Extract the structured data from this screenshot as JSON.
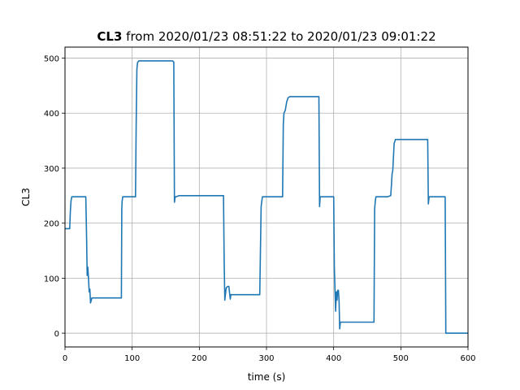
{
  "chart_data": {
    "type": "line",
    "title": {
      "bold": "CL3",
      "rest": " from 2020/01/23 08:51:22 to 2020/01/23 09:01:22"
    },
    "xlabel": "time (s)",
    "ylabel": "CL3",
    "xlim": [
      0,
      600
    ],
    "ylim": [
      -25,
      520
    ],
    "xticks": [
      0,
      100,
      200,
      300,
      400,
      500,
      600
    ],
    "yticks": [
      0,
      100,
      200,
      300,
      400,
      500
    ],
    "grid": true,
    "line_color": "#1f77b4",
    "series": [
      {
        "x": [
          0,
          7,
          8,
          9,
          10,
          12,
          15,
          20,
          25,
          31,
          32,
          33,
          34,
          35,
          36,
          37,
          38,
          40,
          45,
          50,
          60,
          70,
          75,
          80,
          84,
          84.5,
          85,
          86,
          88,
          90,
          95,
          100,
          105,
          106,
          107,
          108,
          110,
          115,
          120,
          130,
          140,
          150,
          160,
          162,
          163,
          164,
          165,
          170,
          180,
          190,
          200,
          210,
          220,
          230,
          236,
          237,
          238,
          239,
          240,
          242,
          244,
          246,
          247,
          248,
          250,
          260,
          270,
          280,
          290,
          292,
          293,
          294,
          296,
          300,
          310,
          320,
          324,
          325,
          326,
          328,
          330,
          332,
          335,
          340,
          350,
          360,
          370,
          378,
          379,
          380,
          382,
          385,
          390,
          395,
          400,
          401,
          402,
          403,
          404,
          405,
          406,
          407,
          408,
          409,
          410,
          412,
          420,
          430,
          440,
          450,
          460,
          461,
          462,
          463,
          465,
          470,
          480,
          485,
          486,
          487,
          488,
          490,
          492,
          495,
          500,
          510,
          520,
          530,
          540,
          541,
          542,
          543,
          545,
          550,
          555,
          560,
          565,
          566,
          567,
          570,
          580,
          590,
          600
        ],
        "y": [
          190,
          190,
          222,
          240,
          248,
          248,
          248,
          248,
          248,
          248,
          180,
          105,
          120,
          100,
          75,
          80,
          55,
          64,
          64,
          64,
          64,
          64,
          64,
          64,
          64,
          225,
          240,
          248,
          248,
          248,
          248,
          248,
          248,
          380,
          480,
          492,
          495,
          495,
          495,
          495,
          495,
          495,
          495,
          493,
          238,
          248,
          248,
          250,
          250,
          250,
          250,
          250,
          250,
          250,
          250,
          130,
          60,
          72,
          82,
          85,
          85,
          62,
          70,
          70,
          70,
          70,
          70,
          70,
          70,
          230,
          240,
          248,
          248,
          248,
          248,
          248,
          248,
          380,
          400,
          405,
          420,
          428,
          430,
          430,
          430,
          430,
          430,
          430,
          230,
          248,
          248,
          248,
          248,
          248,
          248,
          120,
          80,
          40,
          75,
          60,
          78,
          78,
          60,
          8,
          20,
          20,
          20,
          20,
          20,
          20,
          20,
          225,
          240,
          248,
          248,
          248,
          248,
          250,
          270,
          290,
          295,
          345,
          352,
          352,
          352,
          352,
          352,
          352,
          352,
          235,
          248,
          248,
          248,
          248,
          248,
          248,
          248,
          248,
          0,
          0,
          0,
          0,
          0
        ]
      }
    ]
  }
}
